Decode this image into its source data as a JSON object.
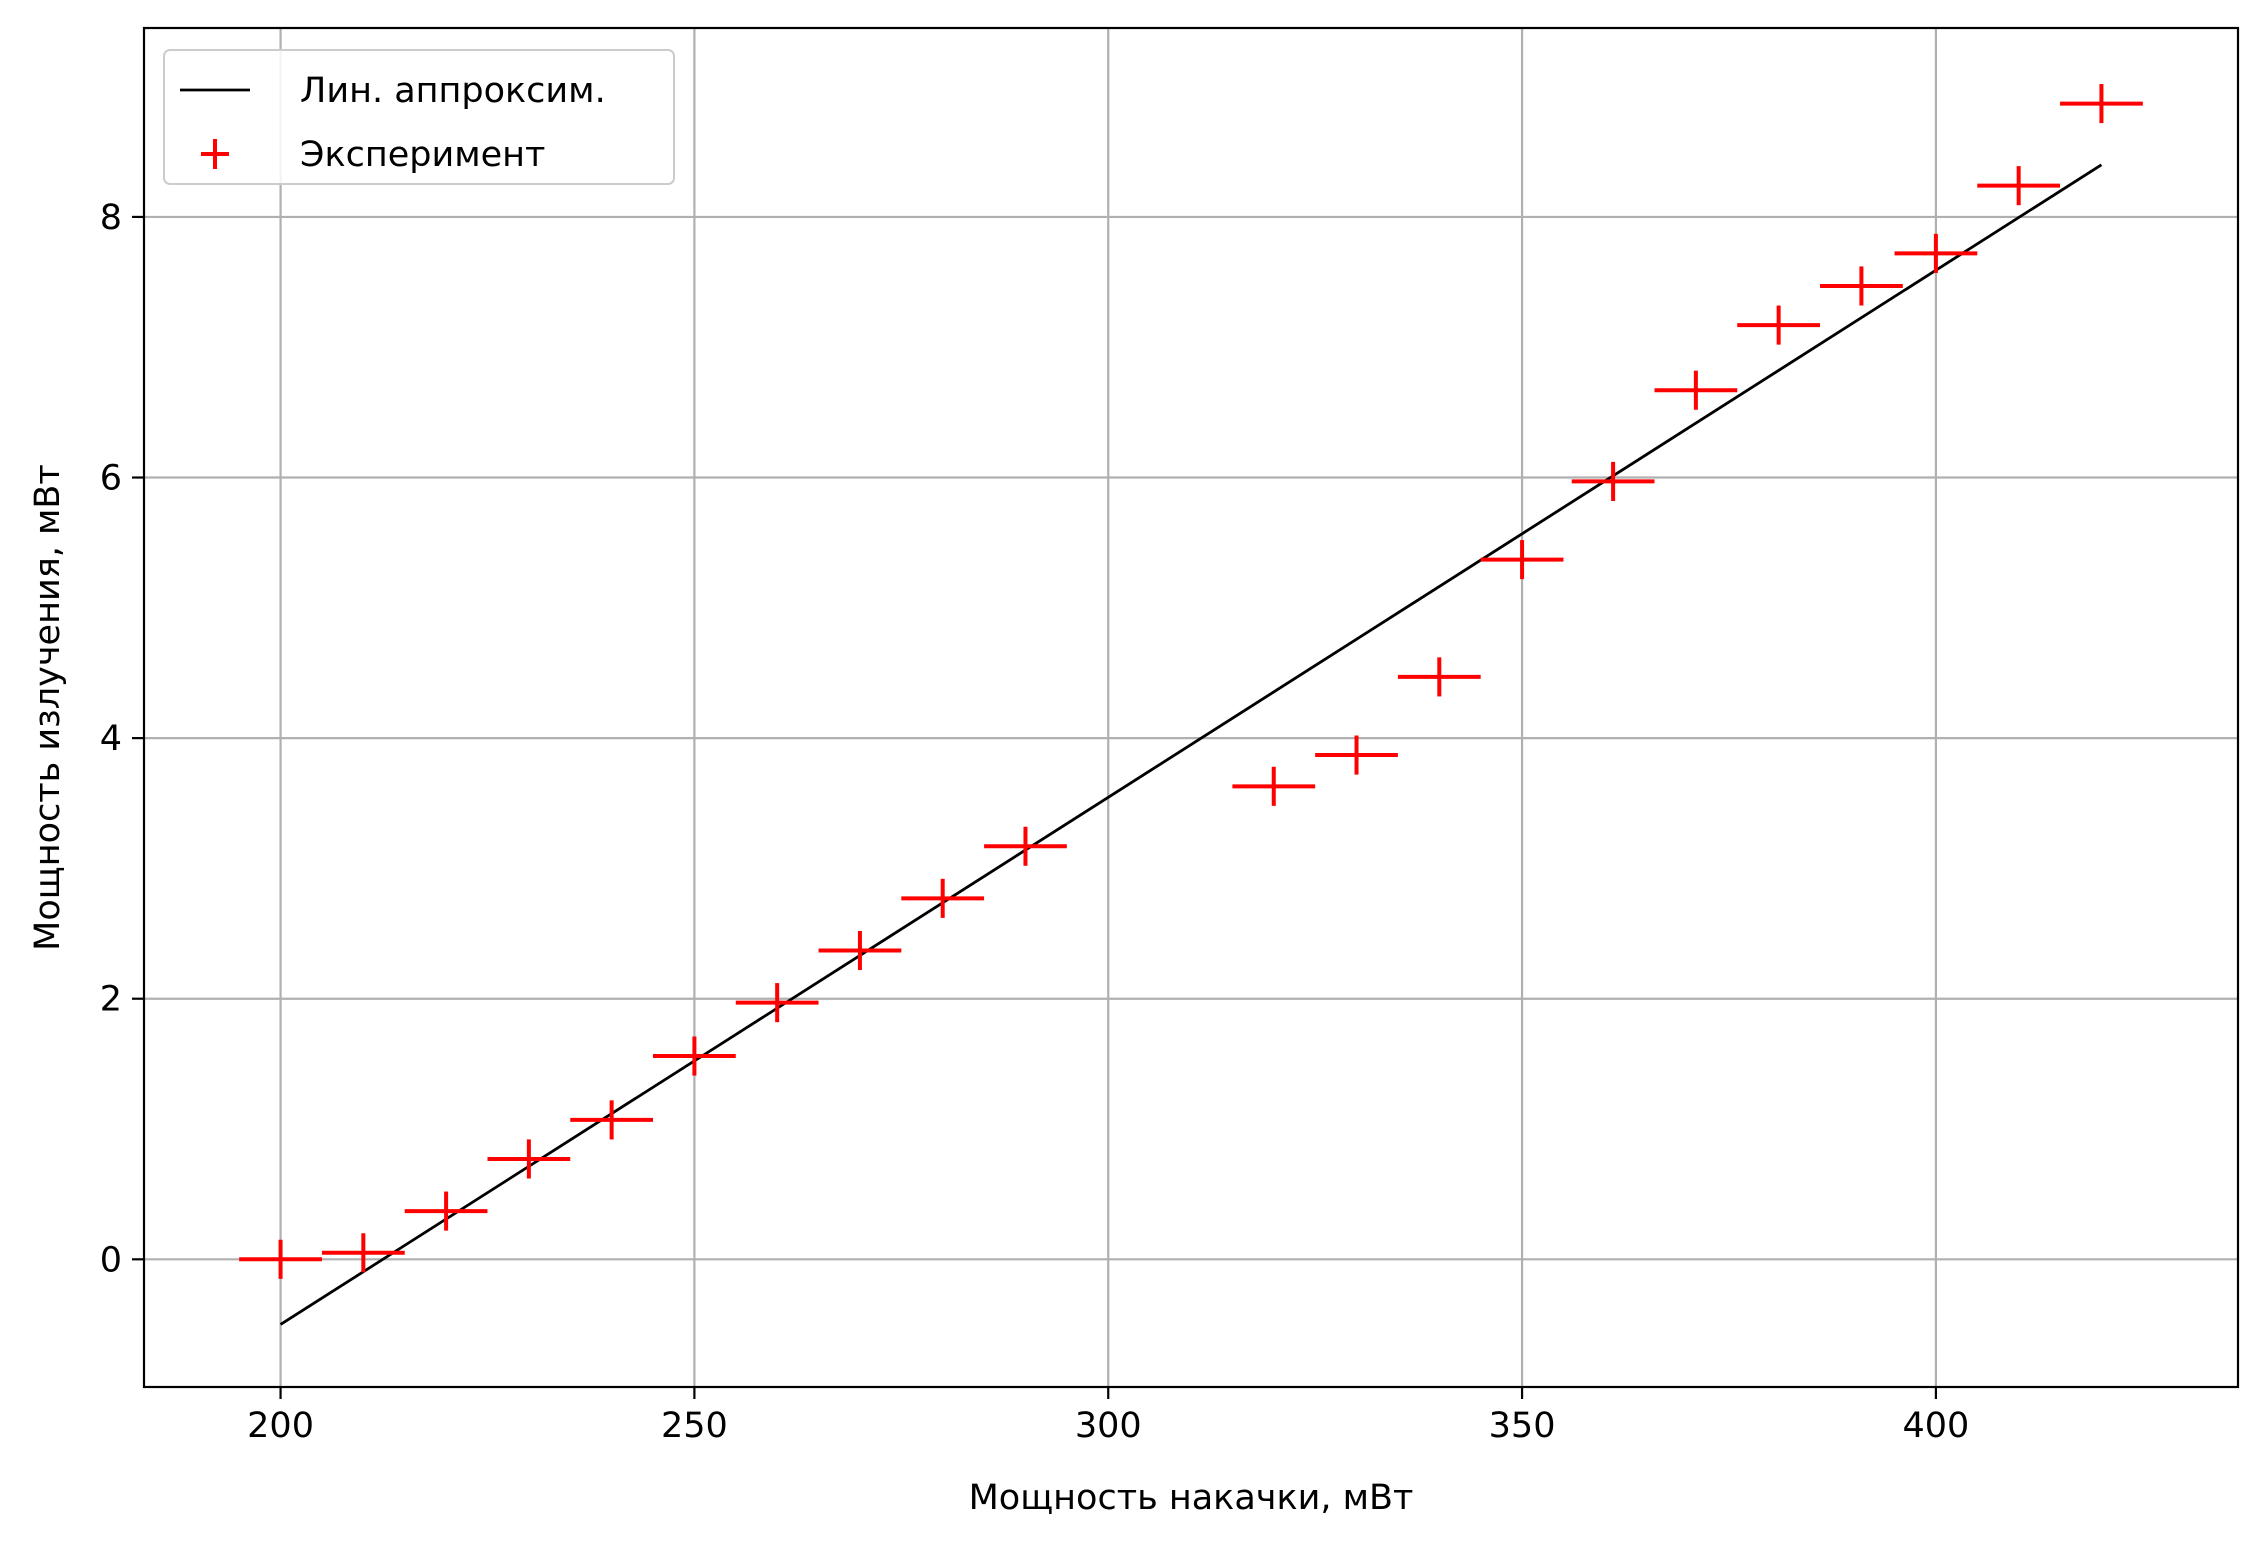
{
  "chart_data": {
    "type": "scatter",
    "title": "",
    "xlabel": "Мощность накачки, мВт",
    "ylabel": "Мощность излучения, мВт",
    "xlim": [
      183.5,
      436.5
    ],
    "ylim": [
      -0.98,
      9.45
    ],
    "x_ticks": [
      200,
      250,
      300,
      350,
      400
    ],
    "y_ticks": [
      0,
      2,
      4,
      6,
      8
    ],
    "grid": true,
    "legend_position": "top-left",
    "series": [
      {
        "name": "Лин. аппроксим.",
        "kind": "line",
        "color": "#000000",
        "x": [
          200,
          420
        ],
        "y": [
          -0.5,
          8.4
        ]
      },
      {
        "name": "Эксперимент",
        "kind": "errorbar",
        "color": "#ff0000",
        "x_error": 5,
        "y_error": 0.15,
        "x": [
          200,
          210,
          220,
          230,
          240,
          250,
          260,
          270,
          280,
          290,
          320,
          330,
          340,
          350,
          361,
          371,
          381,
          391,
          400,
          410,
          420
        ],
        "y": [
          0.0,
          0.05,
          0.37,
          0.77,
          1.07,
          1.56,
          1.97,
          2.37,
          2.77,
          3.17,
          3.63,
          3.87,
          4.47,
          5.37,
          5.97,
          6.67,
          7.17,
          7.47,
          7.72,
          8.24,
          8.87
        ]
      }
    ]
  }
}
